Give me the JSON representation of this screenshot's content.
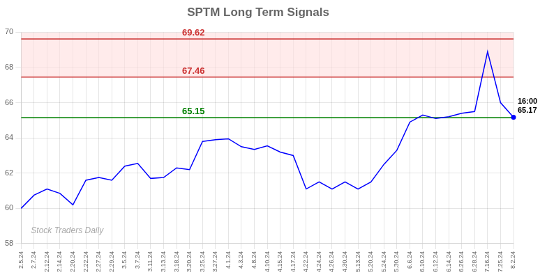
{
  "chart_data": {
    "type": "line",
    "title": "SPTM Long Term Signals",
    "categories": [
      "2.5.24",
      "2.7.24",
      "2.12.24",
      "2.14.24",
      "2.20.24",
      "2.22.24",
      "2.27.24",
      "2.29.24",
      "3.5.24",
      "3.7.24",
      "3.11.24",
      "3.13.24",
      "3.18.24",
      "3.20.24",
      "3.25.24",
      "3.27.24",
      "4.1.24",
      "4.3.24",
      "4.8.24",
      "4.10.24",
      "4.15.24",
      "4.17.24",
      "4.22.24",
      "4.24.24",
      "4.26.24",
      "4.30.24",
      "5.13.24",
      "5.20.24",
      "5.24.24",
      "5.30.24",
      "6.6.24",
      "6.10.24",
      "6.12.24",
      "6.14.24",
      "6.26.24",
      "6.28.24",
      "7.16.24",
      "7.25.24",
      "8.2.24"
    ],
    "values": [
      60.0,
      60.75,
      61.1,
      60.85,
      60.2,
      61.6,
      61.75,
      61.6,
      62.4,
      62.55,
      61.7,
      61.75,
      62.3,
      62.2,
      63.8,
      63.9,
      63.95,
      63.5,
      63.35,
      63.55,
      63.2,
      63.0,
      61.1,
      61.5,
      61.1,
      61.5,
      61.1,
      61.5,
      62.5,
      63.3,
      64.9,
      65.3,
      65.1,
      65.2,
      65.4,
      65.5,
      68.9,
      66.0,
      65.17
    ],
    "color": "blue",
    "ylim": [
      58,
      70
    ],
    "yticks": [
      58,
      60,
      62,
      64,
      66,
      68,
      70
    ],
    "grid": true,
    "hlines": [
      {
        "value": 69.62,
        "color": "#cc3333"
      },
      {
        "value": 67.46,
        "color": "#cc3333"
      },
      {
        "value": 65.15,
        "color": "green"
      }
    ],
    "band": {
      "from": 67.46,
      "to": 70,
      "color": "#ffdddd"
    },
    "last_point": {
      "label": "16:00",
      "value": 65.17
    },
    "watermark": {
      "text": "Stock Traders Daily",
      "color": "#aaaaaa"
    }
  }
}
